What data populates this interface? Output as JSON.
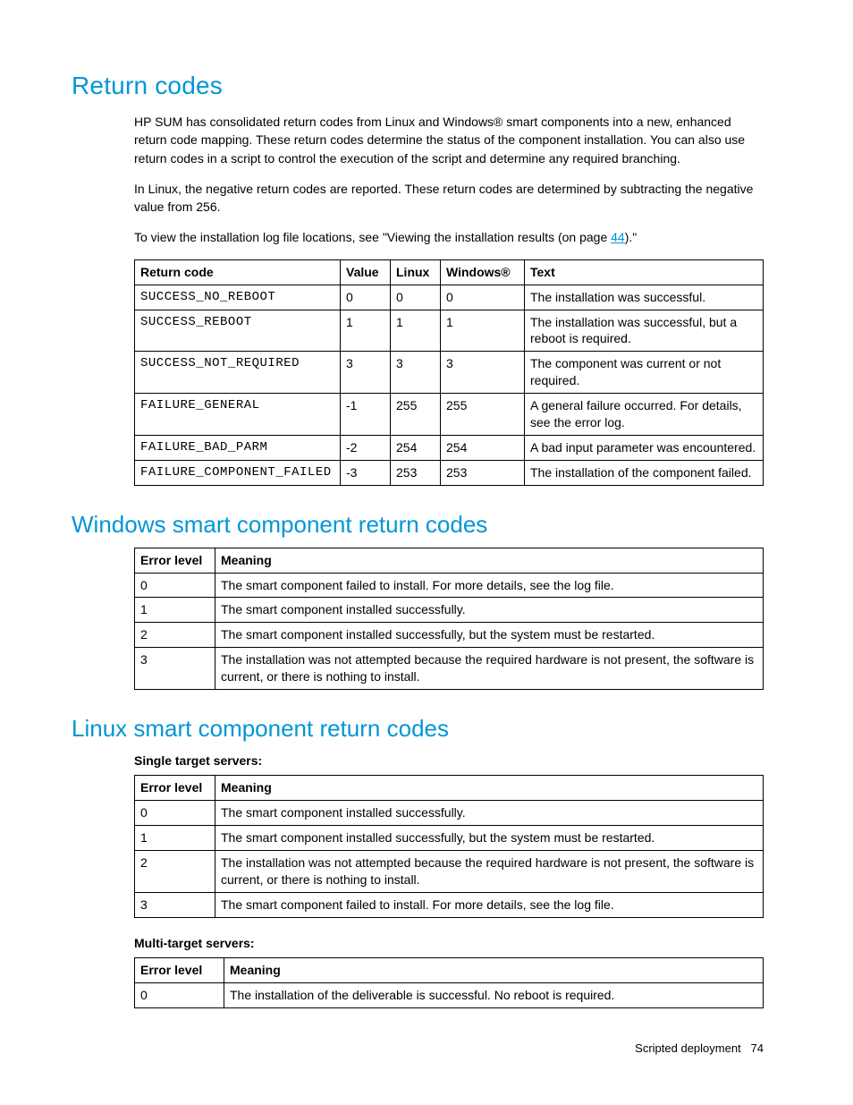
{
  "colors": {
    "heading": "#0096d6",
    "link": "#0096d6",
    "text": "#000000",
    "border": "#000000",
    "background": "#ffffff"
  },
  "heading1": "Return codes",
  "para1": "HP SUM has consolidated return codes from Linux and Windows® smart components into a new, enhanced return code mapping. These return codes determine the status of the component installation. You can also use return codes in a script to control the execution of the script and determine any required branching.",
  "para2": "In Linux, the negative return codes are reported. These return codes are determined by subtracting the negative value from 256.",
  "para3_pre": "To view the installation log file locations, see \"Viewing the installation results (on page ",
  "para3_link": "44",
  "para3_post": ").\"",
  "table1": {
    "headers": [
      "Return code",
      "Value",
      "Linux",
      "Windows®",
      "Text"
    ],
    "rows": [
      [
        "SUCCESS_NO_REBOOT",
        "0",
        "0",
        "0",
        "The installation was successful."
      ],
      [
        "SUCCESS_REBOOT",
        "1",
        "1",
        "1",
        "The installation was successful, but a reboot is required."
      ],
      [
        "SUCCESS_NOT_REQUIRED",
        "3",
        "3",
        "3",
        "The component was current or not required."
      ],
      [
        "FAILURE_GENERAL",
        "-1",
        "255",
        "255",
        "A general failure occurred. For details, see the error log."
      ],
      [
        "FAILURE_BAD_PARM",
        "-2",
        "254",
        "254",
        "A bad input parameter was encountered."
      ],
      [
        "FAILURE_COMPONENT_FAILED",
        "-3",
        "253",
        "253",
        "The installation of the component failed."
      ]
    ]
  },
  "heading2": "Windows smart component return codes",
  "table2": {
    "headers": [
      "Error level",
      "Meaning"
    ],
    "rows": [
      [
        "0",
        "The smart component failed to install. For more details, see the log file."
      ],
      [
        "1",
        "The smart component installed successfully."
      ],
      [
        "2",
        "The smart component installed successfully, but the system must be restarted."
      ],
      [
        "3",
        "The installation was not attempted because the required hardware is not present, the software is current, or there is nothing to install."
      ]
    ]
  },
  "heading3": "Linux smart component return codes",
  "single_label": "Single target servers:",
  "table3": {
    "headers": [
      "Error level",
      "Meaning"
    ],
    "rows": [
      [
        "0",
        "The smart component installed successfully."
      ],
      [
        "1",
        "The smart component installed successfully, but the system must be restarted."
      ],
      [
        "2",
        "The installation was not attempted because the required hardware is not present, the software is current, or there is nothing to install."
      ],
      [
        "3",
        "The smart component failed to install. For more details, see the log file."
      ]
    ]
  },
  "multi_label": "Multi-target servers:",
  "table4": {
    "headers": [
      "Error level",
      "Meaning"
    ],
    "rows": [
      [
        "0",
        "The installation of the deliverable is successful. No reboot is required."
      ]
    ]
  },
  "footer_section": "Scripted deployment",
  "footer_page": "74"
}
